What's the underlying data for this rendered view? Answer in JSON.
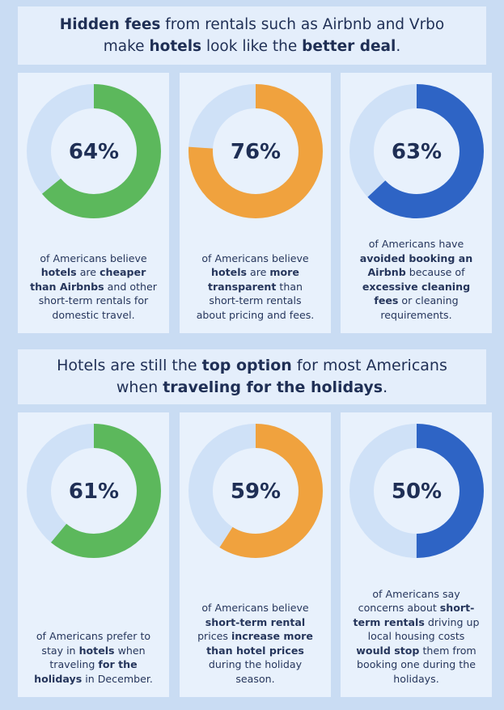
{
  "section1": {
    "title_parts": [
      {
        "t": "Hidden fees",
        "b": true
      },
      {
        "t": " from rentals such as Airbnb and Vrbo",
        "b": false
      },
      {
        "br": true
      },
      {
        "t": "make ",
        "b": false
      },
      {
        "t": "hotels",
        "b": true
      },
      {
        "t": " look like the ",
        "b": false
      },
      {
        "t": "better deal",
        "b": true
      },
      {
        "t": ".",
        "b": false
      }
    ]
  },
  "section2": {
    "title_parts": [
      {
        "t": "Hotels are still the ",
        "b": false
      },
      {
        "t": "top option",
        "b": true
      },
      {
        "t": " for most Americans",
        "b": false
      },
      {
        "br": true
      },
      {
        "t": "when ",
        "b": false
      },
      {
        "t": "traveling for the holidays",
        "b": true
      },
      {
        "t": ".",
        "b": false
      }
    ]
  },
  "colors": {
    "green": "#5cb85c",
    "orange": "#f0a23e",
    "blue": "#2e64c5",
    "track": "#cfe1f7"
  },
  "chart_data": [
    {
      "type": "pie",
      "value": 64,
      "label": "64%",
      "color": "#5cb85c",
      "desc_parts": [
        {
          "t": "of Americans believe",
          "b": false
        },
        {
          "br": true
        },
        {
          "t": "hotels",
          "b": true
        },
        {
          "t": " are ",
          "b": false
        },
        {
          "t": "cheaper",
          "b": true
        },
        {
          "br": true
        },
        {
          "t": "than Airbnbs",
          "b": true
        },
        {
          "t": " and other",
          "b": false
        },
        {
          "br": true
        },
        {
          "t": "short-term rentals for",
          "b": false
        },
        {
          "br": true
        },
        {
          "t": "domestic travel.",
          "b": false
        }
      ]
    },
    {
      "type": "pie",
      "value": 76,
      "label": "76%",
      "color": "#f0a23e",
      "desc_parts": [
        {
          "t": "of Americans believe",
          "b": false
        },
        {
          "br": true
        },
        {
          "t": "hotels",
          "b": true
        },
        {
          "t": " are ",
          "b": false
        },
        {
          "t": "more",
          "b": true
        },
        {
          "br": true
        },
        {
          "t": "transparent",
          "b": true
        },
        {
          "t": " than",
          "b": false
        },
        {
          "br": true
        },
        {
          "t": "short-term rentals",
          "b": false
        },
        {
          "br": true
        },
        {
          "t": "about pricing and fees.",
          "b": false
        }
      ]
    },
    {
      "type": "pie",
      "value": 63,
      "label": "63%",
      "color": "#2e64c5",
      "desc_parts": [
        {
          "t": "of Americans have",
          "b": false
        },
        {
          "br": true
        },
        {
          "t": "avoided booking an",
          "b": true
        },
        {
          "br": true
        },
        {
          "t": "Airbnb",
          "b": true
        },
        {
          "t": " because of",
          "b": false
        },
        {
          "br": true
        },
        {
          "t": "excessive cleaning",
          "b": true
        },
        {
          "br": true
        },
        {
          "t": "fees",
          "b": true
        },
        {
          "t": " or cleaning",
          "b": false
        },
        {
          "br": true
        },
        {
          "t": "requirements.",
          "b": false
        }
      ]
    },
    {
      "type": "pie",
      "value": 61,
      "label": "61%",
      "color": "#5cb85c",
      "desc_parts": [
        {
          "t": "of Americans prefer to",
          "b": false
        },
        {
          "br": true
        },
        {
          "t": "stay in ",
          "b": false
        },
        {
          "t": "hotels",
          "b": true
        },
        {
          "t": " when",
          "b": false
        },
        {
          "br": true
        },
        {
          "t": "traveling ",
          "b": false
        },
        {
          "t": "for the",
          "b": true
        },
        {
          "br": true
        },
        {
          "t": "holidays",
          "b": true
        },
        {
          "t": " in December.",
          "b": false
        }
      ]
    },
    {
      "type": "pie",
      "value": 59,
      "label": "59%",
      "color": "#f0a23e",
      "desc_parts": [
        {
          "t": "of Americans believe",
          "b": false
        },
        {
          "br": true
        },
        {
          "t": "short-term rental",
          "b": true
        },
        {
          "br": true
        },
        {
          "t": "prices ",
          "b": false
        },
        {
          "t": "increase more",
          "b": true
        },
        {
          "br": true
        },
        {
          "t": "than hotel prices",
          "b": true
        },
        {
          "br": true
        },
        {
          "t": "during the holiday",
          "b": false
        },
        {
          "br": true
        },
        {
          "t": "season.",
          "b": false
        }
      ]
    },
    {
      "type": "pie",
      "value": 50,
      "label": "50%",
      "color": "#2e64c5",
      "desc_parts": [
        {
          "t": "of Americans say",
          "b": false
        },
        {
          "br": true
        },
        {
          "t": "concerns about ",
          "b": false
        },
        {
          "t": "short-",
          "b": true
        },
        {
          "br": true
        },
        {
          "t": "term rentals",
          "b": true
        },
        {
          "t": " driving up",
          "b": false
        },
        {
          "br": true
        },
        {
          "t": "local housing costs",
          "b": false
        },
        {
          "br": true
        },
        {
          "t": "would stop",
          "b": true
        },
        {
          "t": " them from",
          "b": false
        },
        {
          "br": true
        },
        {
          "t": "booking one during the",
          "b": false
        },
        {
          "br": true
        },
        {
          "t": "holidays.",
          "b": false
        }
      ]
    }
  ]
}
